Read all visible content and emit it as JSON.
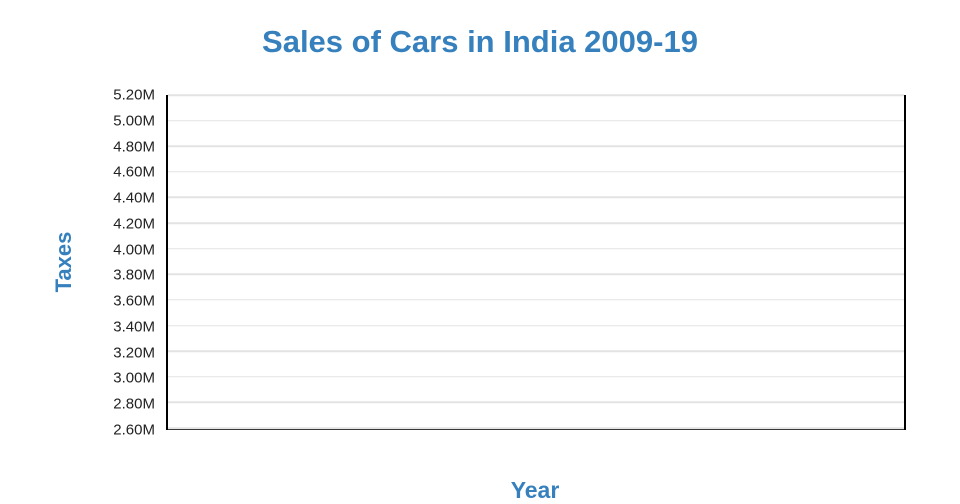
{
  "chart_data": {
    "type": "line",
    "title": "Sales of Cars in India 2009-19",
    "xlabel": "Year",
    "ylabel": "Taxes",
    "series": [],
    "x": [],
    "xticks": [],
    "yticks": [
      "5.20M",
      "5.00M",
      "4.80M",
      "4.60M",
      "4.40M",
      "4.20M",
      "4.00M",
      "3.80M",
      "3.60M",
      "3.40M",
      "3.20M",
      "3.00M",
      "2.80M",
      "2.60M"
    ],
    "ylim": [
      2600000,
      5200000
    ],
    "ytick_step": 200000,
    "grid": "horizontal",
    "legend": "none"
  },
  "colors": {
    "accent_blue": "#3580bd",
    "tick_label": "#222222",
    "gridline": "#e3e3e3",
    "axis_line": "#000000",
    "background": "#ffffff"
  }
}
